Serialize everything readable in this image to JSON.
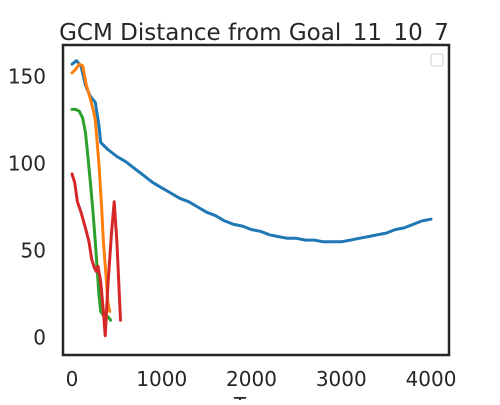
{
  "chart_data": {
    "type": "line",
    "title": "GCM Distance from Goal_11_10_7",
    "xlabel": "T",
    "ylabel": "",
    "xlim": [
      -100,
      4200
    ],
    "ylim": [
      -10,
      168
    ],
    "xticks": [
      0,
      1000,
      2000,
      3000,
      4000
    ],
    "xtick_labels": [
      "0",
      "1000",
      "2000",
      "3000",
      "4000"
    ],
    "yticks": [
      0,
      50,
      100,
      150
    ],
    "ytick_labels": [
      "0",
      "50",
      "100",
      "150"
    ],
    "grid": false,
    "legend": {
      "location": "upper right",
      "entries": []
    },
    "series": [
      {
        "color": "#1f77b4",
        "points": [
          [
            0,
            157
          ],
          [
            50,
            159
          ],
          [
            100,
            156
          ],
          [
            150,
            145
          ],
          [
            200,
            139
          ],
          [
            260,
            135
          ],
          [
            300,
            122
          ],
          [
            320,
            112
          ],
          [
            400,
            108
          ],
          [
            500,
            104
          ],
          [
            600,
            101
          ],
          [
            700,
            97
          ],
          [
            800,
            93
          ],
          [
            900,
            89
          ],
          [
            1000,
            86
          ],
          [
            1100,
            83
          ],
          [
            1200,
            80
          ],
          [
            1300,
            78
          ],
          [
            1400,
            75
          ],
          [
            1500,
            72
          ],
          [
            1600,
            70
          ],
          [
            1700,
            67
          ],
          [
            1800,
            65
          ],
          [
            1900,
            64
          ],
          [
            2000,
            62
          ],
          [
            2100,
            61
          ],
          [
            2200,
            59
          ],
          [
            2300,
            58
          ],
          [
            2400,
            57
          ],
          [
            2500,
            57
          ],
          [
            2600,
            56
          ],
          [
            2700,
            56
          ],
          [
            2800,
            55
          ],
          [
            2900,
            55
          ],
          [
            3000,
            55
          ],
          [
            3100,
            56
          ],
          [
            3200,
            57
          ],
          [
            3300,
            58
          ],
          [
            3400,
            59
          ],
          [
            3500,
            60
          ],
          [
            3600,
            62
          ],
          [
            3700,
            63
          ],
          [
            3800,
            65
          ],
          [
            3900,
            67
          ],
          [
            4000,
            68
          ]
        ]
      },
      {
        "color": "#ff7f0e",
        "points": [
          [
            0,
            152
          ],
          [
            40,
            154
          ],
          [
            80,
            157
          ],
          [
            120,
            156
          ],
          [
            160,
            145
          ],
          [
            200,
            138
          ],
          [
            240,
            130
          ],
          [
            260,
            125
          ],
          [
            300,
            100
          ],
          [
            330,
            75
          ],
          [
            350,
            55
          ],
          [
            380,
            35
          ],
          [
            400,
            20
          ],
          [
            420,
            15
          ]
        ]
      },
      {
        "color": "#2ca02c",
        "points": [
          [
            0,
            131
          ],
          [
            40,
            131
          ],
          [
            80,
            130
          ],
          [
            120,
            126
          ],
          [
            150,
            118
          ],
          [
            170,
            108
          ],
          [
            200,
            92
          ],
          [
            230,
            75
          ],
          [
            260,
            55
          ],
          [
            280,
            40
          ],
          [
            300,
            25
          ],
          [
            320,
            15
          ],
          [
            360,
            12
          ],
          [
            400,
            12
          ],
          [
            430,
            10
          ]
        ]
      },
      {
        "color": "#d62728",
        "points": [
          [
            0,
            94
          ],
          [
            30,
            89
          ],
          [
            60,
            78
          ],
          [
            100,
            72
          ],
          [
            150,
            63
          ],
          [
            190,
            55
          ],
          [
            220,
            45
          ],
          [
            250,
            40
          ],
          [
            270,
            38
          ],
          [
            290,
            41
          ],
          [
            320,
            32
          ],
          [
            350,
            15
          ],
          [
            370,
            1
          ],
          [
            400,
            30
          ],
          [
            440,
            60
          ],
          [
            470,
            78
          ],
          [
            500,
            55
          ],
          [
            540,
            10
          ]
        ]
      }
    ]
  }
}
